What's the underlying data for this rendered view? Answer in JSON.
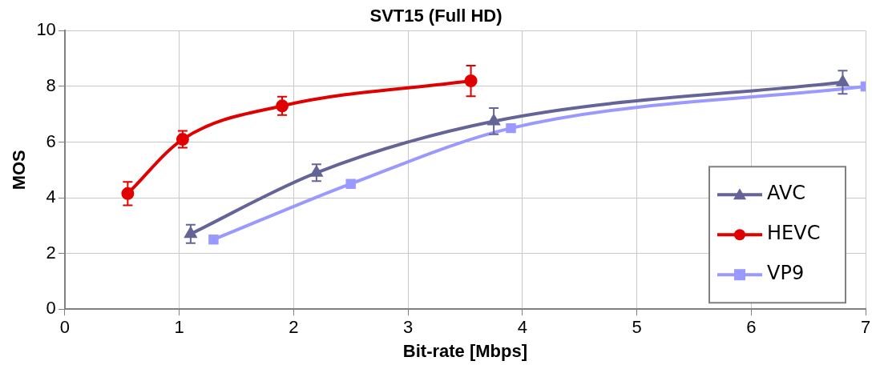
{
  "chart_data": {
    "type": "line",
    "title": "SVT15 (Full HD)",
    "xlabel": "Bit-rate [Mbps]",
    "ylabel": "MOS",
    "xlim": [
      0,
      7
    ],
    "xticks": [
      0,
      1,
      2,
      3,
      4,
      5,
      6,
      7
    ],
    "ylim": [
      0,
      10
    ],
    "yticks": [
      0,
      2,
      4,
      6,
      8,
      10
    ],
    "grid": true,
    "legend": "bottom right",
    "series": [
      {
        "name": "AVC",
        "color": "#646498",
        "marker": "triangle",
        "x": [
          1.1,
          2.2,
          3.75,
          6.8
        ],
        "values": [
          2.7,
          4.9,
          6.75,
          8.15
        ],
        "errors": [
          0.33,
          0.3,
          0.47,
          0.42
        ]
      },
      {
        "name": "HEVC",
        "color": "#e00000",
        "marker": "circle",
        "x": [
          0.55,
          1.03,
          1.9,
          3.55
        ],
        "values": [
          4.15,
          6.1,
          7.3,
          8.2
        ],
        "errors": [
          0.42,
          0.3,
          0.33,
          0.55
        ]
      },
      {
        "name": "VP9",
        "color": "#9999ff",
        "marker": "square",
        "x": [
          1.3,
          2.5,
          3.9,
          7
        ],
        "values": [
          2.5,
          4.5,
          6.5,
          8.0
        ]
      }
    ]
  }
}
